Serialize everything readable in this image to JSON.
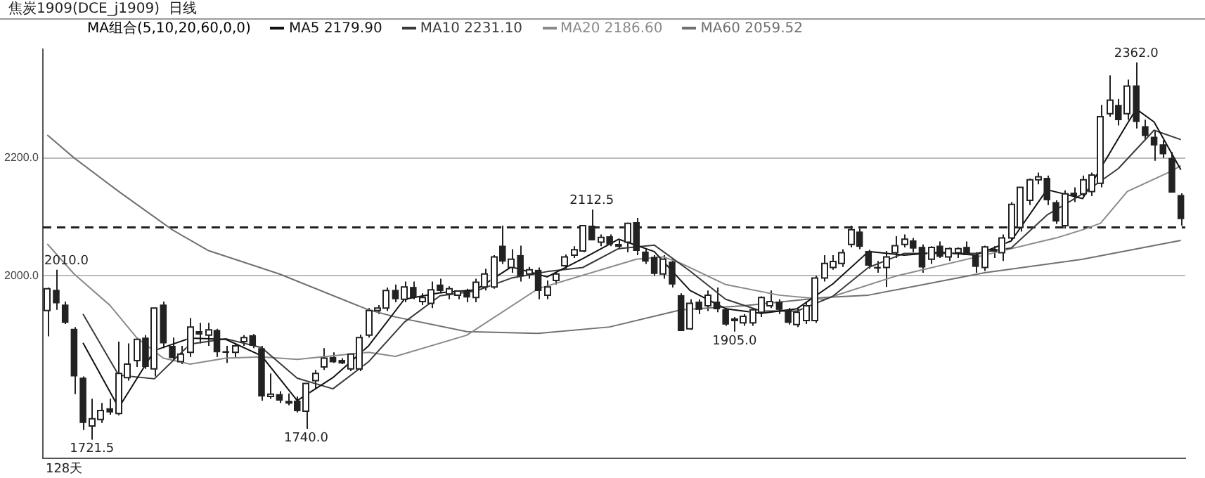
{
  "chart_data": {
    "type": "candlestick",
    "title": "焦炭1909(DCE_j1909)  日线",
    "subtitle": "MA组合(5,10,20,60,0,0)",
    "categories": [
      null,
      null,
      null,
      null,
      null,
      null,
      null,
      null,
      null,
      null,
      null,
      null,
      null,
      null,
      null,
      null,
      null,
      null,
      null,
      null,
      null,
      null,
      null,
      null,
      null,
      null,
      null,
      null,
      null,
      null,
      null,
      null,
      null,
      null,
      null,
      null,
      null,
      null,
      null,
      null,
      null,
      null,
      null,
      null,
      null,
      null,
      null,
      null,
      null,
      null,
      null,
      null,
      null,
      null,
      null,
      null,
      null,
      null,
      null,
      null,
      null,
      null,
      null,
      null,
      null,
      null,
      null,
      null,
      null,
      null,
      null,
      null,
      null,
      null,
      null,
      null,
      null,
      null,
      null,
      null,
      null,
      null,
      null,
      null,
      null,
      null,
      null,
      null,
      null,
      null,
      null,
      null,
      null,
      null,
      null,
      null,
      null,
      null,
      null,
      null,
      null,
      null,
      null,
      null,
      null,
      null,
      null,
      null,
      null,
      null,
      null,
      null,
      null,
      null,
      null,
      null,
      null,
      null,
      null,
      null,
      null,
      null,
      null,
      null,
      null,
      null,
      null,
      null
    ],
    "ohlc": [
      [
        1941,
        1980,
        1897,
        1978
      ],
      [
        1976,
        2010,
        1942,
        1953
      ],
      [
        1951,
        1956,
        1918,
        1920
      ],
      [
        1910,
        1913,
        1799,
        1829
      ],
      [
        1827,
        1829,
        1738,
        1750
      ],
      [
        1745,
        1791,
        1721.5,
        1757
      ],
      [
        1756,
        1784,
        1750,
        1771
      ],
      [
        1775,
        1791,
        1764,
        1768
      ],
      [
        1766,
        1888,
        1763,
        1834
      ],
      [
        1827,
        1885,
        1822,
        1850
      ],
      [
        1856,
        1895,
        1845,
        1892
      ],
      [
        1895,
        1899,
        1842,
        1845
      ],
      [
        1842,
        1946,
        1829,
        1945
      ],
      [
        1951,
        1956,
        1877,
        1885
      ],
      [
        1881,
        1895,
        1856,
        1860
      ],
      [
        1854,
        1881,
        1850,
        1867
      ],
      [
        1870,
        1928,
        1862,
        1913
      ],
      [
        1906,
        1920,
        1885,
        1900
      ],
      [
        1899,
        1920,
        1881,
        1908
      ],
      [
        1908,
        1910,
        1862,
        1870
      ],
      [
        1872,
        1881,
        1852,
        1869
      ],
      [
        1870,
        1885,
        1860,
        1881
      ],
      [
        1888,
        1899,
        1881,
        1895
      ],
      [
        1899,
        1901,
        1877,
        1881
      ],
      [
        1877,
        1881,
        1788,
        1795
      ],
      [
        1795,
        1834,
        1791,
        1799
      ],
      [
        1799,
        1804,
        1784,
        1788
      ],
      [
        1784,
        1800,
        1780,
        1786
      ],
      [
        1788,
        1795,
        1768,
        1770
      ],
      [
        1770,
        1817,
        1740,
        1817
      ],
      [
        1822,
        1840,
        1808,
        1834
      ],
      [
        1845,
        1877,
        1840,
        1860
      ],
      [
        1862,
        1870,
        1852,
        1853
      ],
      [
        1857,
        1860,
        1850,
        1851
      ],
      [
        1842,
        1867,
        1838,
        1867
      ],
      [
        1842,
        1900,
        1838,
        1895
      ],
      [
        1899,
        1945,
        1895,
        1941
      ],
      [
        1941,
        1950,
        1935,
        1945
      ],
      [
        1945,
        1980,
        1940,
        1975
      ],
      [
        1976,
        1985,
        1955,
        1960
      ],
      [
        1960,
        1990,
        1955,
        1981
      ],
      [
        1981,
        1990,
        1960,
        1963
      ],
      [
        1956,
        1970,
        1950,
        1963
      ],
      [
        1953,
        1990,
        1945,
        1976
      ],
      [
        1985,
        1995,
        1970,
        1974
      ],
      [
        1969,
        1982,
        1960,
        1978
      ],
      [
        1967,
        1975,
        1960,
        1974
      ],
      [
        1974,
        1978,
        1955,
        1963
      ],
      [
        1963,
        1995,
        1955,
        1989
      ],
      [
        1981,
        2012,
        1975,
        2003
      ],
      [
        1981,
        2035,
        1978,
        2032
      ],
      [
        2051,
        2085,
        2020,
        2024
      ],
      [
        2014,
        2045,
        2005,
        2028
      ],
      [
        2035,
        2051,
        1990,
        1999
      ],
      [
        2003,
        2015,
        1995,
        2010
      ],
      [
        2010,
        2014,
        1960,
        1974
      ],
      [
        1967,
        1992,
        1960,
        1981
      ],
      [
        1992,
        2005,
        1985,
        2003
      ],
      [
        2017,
        2036,
        2012,
        2032
      ],
      [
        2035,
        2050,
        2030,
        2044
      ],
      [
        2042,
        2085,
        2040,
        2085
      ],
      [
        2085,
        2112.5,
        2060,
        2060
      ],
      [
        2057,
        2070,
        2050,
        2065
      ],
      [
        2067,
        2070,
        2050,
        2053
      ],
      [
        2054,
        2060,
        2045,
        2049
      ],
      [
        2057,
        2090,
        2040,
        2089
      ],
      [
        2091,
        2098,
        2035,
        2042
      ],
      [
        2041,
        2045,
        2020,
        2024
      ],
      [
        2032,
        2035,
        2000,
        2003
      ],
      [
        2003,
        2035,
        1995,
        2028
      ],
      [
        2024,
        2028,
        1980,
        1985
      ],
      [
        1967,
        1970,
        1906,
        1906
      ],
      [
        1910,
        1960,
        1908,
        1953
      ],
      [
        1956,
        1960,
        1935,
        1942
      ],
      [
        1949,
        1975,
        1940,
        1967
      ],
      [
        1956,
        1980,
        1938,
        1943
      ],
      [
        1943,
        1945,
        1915,
        1917
      ],
      [
        1924,
        1930,
        1905,
        1926
      ],
      [
        1920,
        1935,
        1915,
        1931
      ],
      [
        1920,
        1945,
        1915,
        1942
      ],
      [
        1938,
        1965,
        1930,
        1963
      ],
      [
        1949,
        1975,
        1945,
        1956
      ],
      [
        1956,
        1960,
        1935,
        1942
      ],
      [
        1942,
        1945,
        1917,
        1920
      ],
      [
        1917,
        1945,
        1913,
        1938
      ],
      [
        1924,
        1955,
        1918,
        1949
      ],
      [
        1924,
        2000,
        1920,
        1996
      ],
      [
        1996,
        2035,
        1990,
        2021
      ],
      [
        2014,
        2035,
        2010,
        2024
      ],
      [
        2021,
        2045,
        2015,
        2039
      ],
      [
        2053,
        2085,
        2048,
        2078
      ],
      [
        2075,
        2080,
        2045,
        2049
      ],
      [
        2042,
        2044,
        2012,
        2017
      ],
      [
        2015,
        2025,
        2005,
        2012
      ],
      [
        2014,
        2042,
        1981,
        2032
      ],
      [
        2039,
        2067,
        2030,
        2051
      ],
      [
        2053,
        2070,
        2048,
        2062
      ],
      [
        2060,
        2064,
        2040,
        2046
      ],
      [
        2049,
        2053,
        2005,
        2014
      ],
      [
        2028,
        2050,
        2020,
        2048
      ],
      [
        2051,
        2058,
        2030,
        2032
      ],
      [
        2032,
        2048,
        2025,
        2046
      ],
      [
        2039,
        2048,
        2030,
        2046
      ],
      [
        2049,
        2058,
        2035,
        2035
      ],
      [
        2035,
        2040,
        2005,
        2015
      ],
      [
        2014,
        2051,
        2008,
        2049
      ],
      [
        2042,
        2050,
        2030,
        2044
      ],
      [
        2039,
        2070,
        2025,
        2064
      ],
      [
        2064,
        2125,
        2060,
        2121
      ],
      [
        2082,
        2150,
        2075,
        2150
      ],
      [
        2128,
        2165,
        2120,
        2163
      ],
      [
        2163,
        2175,
        2155,
        2168
      ],
      [
        2166,
        2170,
        2120,
        2128
      ],
      [
        2125,
        2128,
        2088,
        2092
      ],
      [
        2085,
        2145,
        2080,
        2139
      ],
      [
        2141,
        2150,
        2125,
        2135
      ],
      [
        2139,
        2170,
        2135,
        2163
      ],
      [
        2143,
        2175,
        2135,
        2171
      ],
      [
        2157,
        2290,
        2150,
        2270
      ],
      [
        2275,
        2340,
        2270,
        2298
      ],
      [
        2290,
        2300,
        2255,
        2264
      ],
      [
        2275,
        2333,
        2265,
        2322
      ],
      [
        2323,
        2362,
        2250,
        2261
      ],
      [
        2254,
        2265,
        2230,
        2237
      ],
      [
        2236,
        2245,
        2195,
        2221
      ],
      [
        2223,
        2230,
        2200,
        2206
      ],
      [
        2200,
        2210,
        2141,
        2141
      ],
      [
        2137,
        2140,
        2085,
        2096
      ]
    ],
    "series": [
      {
        "name": "MA5 2179.90",
        "type": "line",
        "color": "#111111",
        "values": [
          null,
          null,
          null,
          null,
          1886,
          null,
          null,
          null,
          1776,
          null,
          null,
          null,
          1873,
          null,
          null,
          null,
          1894,
          null,
          null,
          null,
          1892,
          null,
          null,
          null,
          1864,
          null,
          null,
          null,
          1788,
          null,
          null,
          null,
          1827,
          null,
          null,
          null,
          1881,
          null,
          null,
          null,
          1960,
          null,
          null,
          null,
          1971,
          null,
          null,
          null,
          1976,
          null,
          null,
          null,
          2015,
          null,
          null,
          null,
          1998,
          null,
          null,
          null,
          2029,
          null,
          null,
          null,
          2062,
          null,
          null,
          null,
          2041,
          null,
          null,
          null,
          1975,
          null,
          null,
          null,
          1944,
          null,
          null,
          null,
          1936,
          null,
          null,
          null,
          1944,
          null,
          null,
          null,
          1986,
          null,
          null,
          null,
          2041,
          null,
          null,
          null,
          2035,
          null,
          null,
          null,
          2040,
          null,
          null,
          null,
          2035,
          null,
          null,
          null,
          2059,
          null,
          null,
          null,
          2146,
          null,
          null,
          null,
          2131,
          null,
          null,
          null,
          2233,
          null,
          2283,
          null,
          2261,
          null,
          null,
          2180
        ]
      },
      {
        "name": "MA10 2231.10",
        "type": "line",
        "color": "#3a3a3a",
        "values": [
          null,
          null,
          null,
          null,
          1935,
          null,
          null,
          null,
          1831,
          null,
          null,
          null,
          1825,
          null,
          null,
          null,
          1884,
          null,
          null,
          null,
          1893,
          null,
          null,
          null,
          1878,
          null,
          null,
          null,
          1826,
          null,
          null,
          null,
          1808,
          null,
          null,
          null,
          1854,
          null,
          null,
          null,
          1921,
          null,
          null,
          null,
          1966,
          null,
          null,
          null,
          1974,
          null,
          null,
          null,
          1996,
          null,
          null,
          null,
          2007,
          null,
          null,
          null,
          2014,
          null,
          null,
          null,
          2046,
          null,
          null,
          null,
          2052,
          null,
          null,
          null,
          2008,
          null,
          null,
          null,
          1960,
          null,
          null,
          null,
          1940,
          null,
          null,
          null,
          1940,
          null,
          null,
          null,
          1965,
          null,
          null,
          null,
          2014,
          null,
          null,
          null,
          2038,
          null,
          null,
          null,
          2038,
          null,
          null,
          null,
          2038,
          null,
          null,
          null,
          2047,
          null,
          null,
          null,
          2103,
          null,
          null,
          null,
          2139,
          null,
          null,
          null,
          2182,
          null,
          null,
          null,
          2247,
          null,
          null,
          2231
        ]
      },
      {
        "name": "MA20 2186.60",
        "type": "line",
        "color": "#8a8a8a",
        "values": [
          2054,
          null,
          null,
          2003,
          null,
          null,
          null,
          1950,
          null,
          null,
          1895,
          null,
          null,
          1860,
          null,
          null,
          1850,
          null,
          null,
          null,
          1860,
          null,
          null,
          null,
          1862,
          null,
          null,
          null,
          1858,
          null,
          null,
          null,
          null,
          null,
          null,
          null,
          1870,
          null,
          null,
          1863,
          null,
          null,
          null,
          null,
          null,
          null,
          null,
          1899,
          null,
          null,
          null,
          null,
          null,
          null,
          null,
          1978,
          null,
          null,
          null,
          null,
          null,
          null,
          null,
          null,
          null,
          null,
          2028,
          null,
          null,
          2032,
          null,
          2021,
          null,
          null,
          null,
          null,
          1985,
          null,
          null,
          null,
          null,
          null,
          1967,
          null,
          null,
          null,
          null,
          1960,
          null,
          null,
          null,
          null,
          null,
          null,
          null,
          1999,
          null,
          null,
          null,
          null,
          null,
          null,
          null,
          null,
          null,
          2035,
          null,
          null,
          null,
          null,
          null,
          null,
          null,
          2064,
          null,
          null,
          2078,
          null,
          2089,
          null,
          null,
          2143,
          null,
          null,
          null,
          null,
          2178,
          2187
        ]
      },
      {
        "name": "MA60 2059.52",
        "type": "line",
        "color": "#707070",
        "values": [
          2239,
          null,
          null,
          2200,
          null,
          null,
          null,
          null,
          2143,
          null,
          null,
          null,
          null,
          null,
          2078,
          null,
          null,
          null,
          2043,
          null,
          null,
          null,
          null,
          null,
          null,
          null,
          2003,
          null,
          null,
          null,
          null,
          null,
          null,
          null,
          null,
          null,
          1942,
          null,
          null,
          1930,
          null,
          null,
          null,
          null,
          null,
          null,
          null,
          1905,
          null,
          null,
          null,
          null,
          null,
          null,
          null,
          1902,
          null,
          null,
          null,
          null,
          null,
          null,
          null,
          1913,
          null,
          null,
          null,
          null,
          null,
          null,
          null,
          1942,
          null,
          null,
          null,
          null,
          null,
          null,
          1949,
          null,
          null,
          null,
          null,
          null,
          null,
          null,
          null,
          1963,
          null,
          null,
          null,
          null,
          1967,
          null,
          null,
          null,
          null,
          null,
          null,
          null,
          null,
          null,
          null,
          null,
          null,
          2005,
          null,
          null,
          null,
          null,
          null,
          null,
          null,
          null,
          null,
          null,
          2028,
          null,
          null,
          null,
          null,
          null,
          null,
          null,
          null,
          null,
          null,
          2060
        ]
      }
    ],
    "ylim": [
      1690,
      2385
    ],
    "yticks": [
      {
        "value": 2000,
        "label": "2000.0"
      },
      {
        "value": 2200,
        "label": "2200.0"
      }
    ],
    "grid": "y",
    "legend": "top left",
    "marker": "none",
    "tick_labels": "y",
    "ref_lines": [
      {
        "axis": "y",
        "value": 2082,
        "color": "#222222",
        "line_style": "dashed"
      }
    ],
    "annotations": [
      {
        "text": "2362.0",
        "y": 2362
      },
      {
        "text": "2010.0",
        "y": 2010
      },
      {
        "text": "2112.5",
        "y": 2112.5
      },
      {
        "text": "1905.0",
        "y": 1905
      },
      {
        "text": "1740.0",
        "y": 1740
      },
      {
        "text": "1721.5",
        "y": 1721.5
      },
      "128天"
    ]
  }
}
